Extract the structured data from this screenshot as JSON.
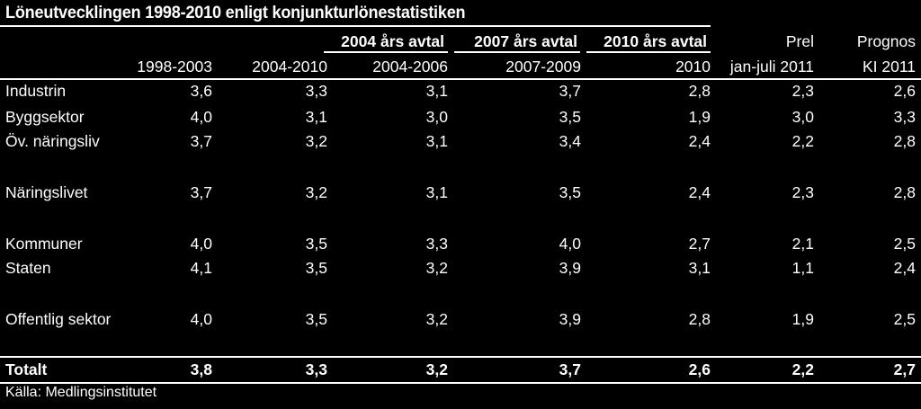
{
  "title": "Löneutvecklingen 1998-2010 enligt konjunkturlönestatistiken",
  "header_top": [
    "",
    "",
    "2004 års avtal",
    "2007 års avtal",
    "2010 års avtal",
    "Prel",
    "Prognos"
  ],
  "header_sub": [
    "1998-2003",
    "2004-2010",
    "2004-2006",
    "2007-2009",
    "2010",
    "jan-juli 2011",
    "KI 2011"
  ],
  "rows": [
    {
      "label": "Industrin",
      "values": [
        "3,6",
        "3,3",
        "3,1",
        "3,7",
        "2,8",
        "2,3",
        "2,6"
      ]
    },
    {
      "label": "Byggsektor",
      "values": [
        "4,0",
        "3,1",
        "3,0",
        "3,5",
        "1,9",
        "3,0",
        "3,3"
      ]
    },
    {
      "label": "Öv. näringsliv",
      "values": [
        "3,7",
        "3,2",
        "3,1",
        "3,4",
        "2,4",
        "2,2",
        "2,8"
      ]
    },
    {
      "label": "Näringslivet",
      "values": [
        "3,7",
        "3,2",
        "3,1",
        "3,5",
        "2,4",
        "2,3",
        "2,8"
      ]
    },
    {
      "label": "Kommuner",
      "values": [
        "4,0",
        "3,5",
        "3,3",
        "4,0",
        "2,7",
        "2,1",
        "2,5"
      ]
    },
    {
      "label": "Staten",
      "values": [
        "4,1",
        "3,5",
        "3,2",
        "3,9",
        "3,1",
        "1,1",
        "2,4"
      ]
    },
    {
      "label": "Offentlig sektor",
      "values": [
        "4,0",
        "3,5",
        "3,2",
        "3,9",
        "2,8",
        "1,9",
        "2,5"
      ]
    },
    {
      "label": "Totalt",
      "values": [
        "3,8",
        "3,3",
        "3,2",
        "3,7",
        "2,6",
        "2,2",
        "2,7"
      ],
      "bold": true
    }
  ],
  "source": "Källa: Medlingsinstitutet"
}
